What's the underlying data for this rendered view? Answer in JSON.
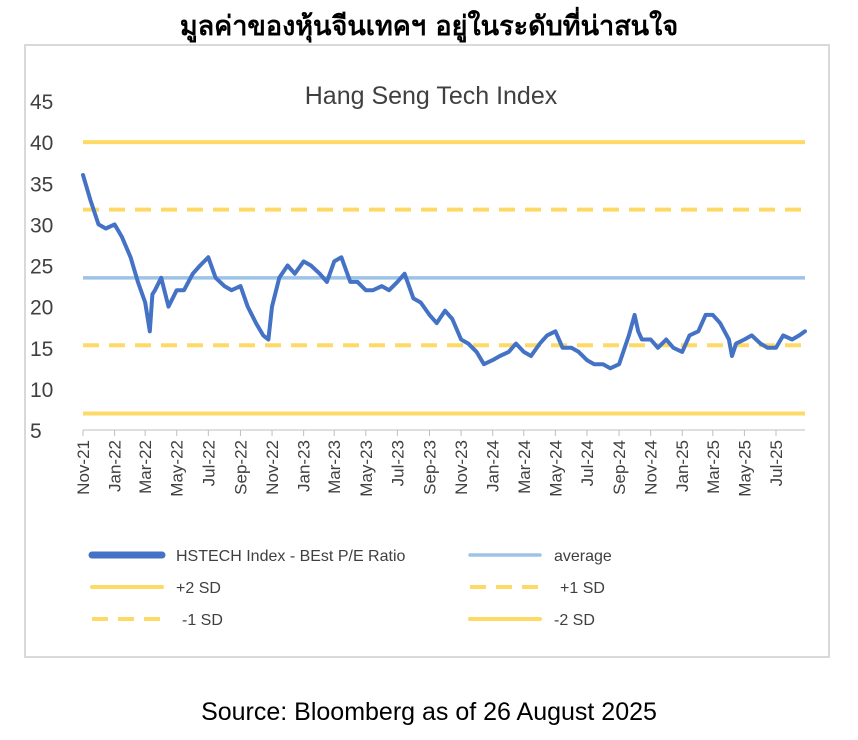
{
  "page": {
    "heading": "มูลค่าของหุ้นจีนเทคฯ อยู่ในระดับที่น่าสนใจ",
    "source": "Source: Bloomberg as of 26 August 2025"
  },
  "chart_data": {
    "type": "line",
    "title": "Hang Seng Tech Index",
    "xlabel": "",
    "ylabel": "",
    "ylim": [
      5,
      45
    ],
    "yticks": [
      45,
      40,
      35,
      30,
      25,
      20,
      15,
      10,
      5
    ],
    "xticks": [
      "Nov-21",
      "Jan-22",
      "Mar-22",
      "May-22",
      "Jul-22",
      "Sep-22",
      "Nov-22",
      "Jan-23",
      "Mar-23",
      "May-23",
      "Jul-23",
      "Sep-23",
      "Nov-23",
      "Jan-24",
      "Mar-24",
      "May-24",
      "Jul-24",
      "Sep-24",
      "Nov-24",
      "Jan-25",
      "Mar-25",
      "May-25",
      "Jul-25"
    ],
    "x_range": [
      "2021-11-01",
      "2025-08-26"
    ],
    "grid": false,
    "legend_position": "bottom",
    "colors": {
      "pe": "#4472c4",
      "average": "#9dc3e6",
      "sd": "#ffd966"
    },
    "series": [
      {
        "name": "HSTECH Index - BEst P/E Ratio",
        "x": [
          "2021-11-01",
          "2021-11-15",
          "2021-12-01",
          "2021-12-15",
          "2022-01-01",
          "2022-01-15",
          "2022-02-01",
          "2022-02-15",
          "2022-03-01",
          "2022-03-10",
          "2022-03-15",
          "2022-03-20",
          "2022-04-01",
          "2022-04-15",
          "2022-05-01",
          "2022-05-15",
          "2022-06-01",
          "2022-06-15",
          "2022-07-01",
          "2022-07-15",
          "2022-08-01",
          "2022-08-15",
          "2022-09-01",
          "2022-09-15",
          "2022-10-01",
          "2022-10-15",
          "2022-10-25",
          "2022-11-01",
          "2022-11-15",
          "2022-12-01",
          "2022-12-15",
          "2023-01-01",
          "2023-01-15",
          "2023-02-01",
          "2023-02-15",
          "2023-03-01",
          "2023-03-15",
          "2023-04-01",
          "2023-04-15",
          "2023-05-01",
          "2023-05-15",
          "2023-06-01",
          "2023-06-15",
          "2023-07-01",
          "2023-07-15",
          "2023-08-01",
          "2023-08-15",
          "2023-09-01",
          "2023-09-15",
          "2023-10-01",
          "2023-10-15",
          "2023-11-01",
          "2023-11-15",
          "2023-12-01",
          "2023-12-15",
          "2024-01-01",
          "2024-01-15",
          "2024-02-01",
          "2024-02-15",
          "2024-03-01",
          "2024-03-15",
          "2024-04-01",
          "2024-04-15",
          "2024-05-01",
          "2024-05-15",
          "2024-06-01",
          "2024-06-15",
          "2024-07-01",
          "2024-07-15",
          "2024-08-01",
          "2024-08-15",
          "2024-09-01",
          "2024-09-20",
          "2024-10-01",
          "2024-10-08",
          "2024-10-15",
          "2024-11-01",
          "2024-11-15",
          "2024-12-01",
          "2024-12-15",
          "2025-01-01",
          "2025-01-15",
          "2025-02-01",
          "2025-02-15",
          "2025-03-01",
          "2025-03-15",
          "2025-04-01",
          "2025-04-07",
          "2025-04-15",
          "2025-05-01",
          "2025-05-15",
          "2025-06-01",
          "2025-06-15",
          "2025-07-01",
          "2025-07-15",
          "2025-08-01",
          "2025-08-15",
          "2025-08-26"
        ],
        "y": [
          36,
          33,
          30,
          29.5,
          30,
          28.5,
          26,
          23,
          20.5,
          17,
          21.5,
          22,
          23.5,
          20,
          22,
          22,
          24,
          25,
          26,
          23.5,
          22.5,
          22,
          22.5,
          20,
          18,
          16.5,
          16,
          20,
          23.5,
          25,
          24,
          25.5,
          25,
          24,
          23,
          25.5,
          26,
          23,
          23,
          22,
          22,
          22.5,
          22,
          23,
          24,
          21,
          20.5,
          19,
          18,
          19.5,
          18.5,
          16,
          15.5,
          14.5,
          13,
          13.5,
          14,
          14.5,
          15.5,
          14.5,
          14,
          15.5,
          16.5,
          17,
          15,
          15,
          14.5,
          13.5,
          13,
          13,
          12.5,
          13,
          16.5,
          19,
          17,
          16,
          16,
          15,
          16,
          15,
          14.5,
          16.5,
          17,
          19,
          19,
          18,
          16,
          14,
          15.5,
          16,
          16.5,
          15.5,
          15,
          15,
          16.5,
          16,
          16.5,
          17
        ]
      },
      {
        "name": "average",
        "value": 23.5
      },
      {
        "name": "+2 SD",
        "value": 40
      },
      {
        "name": "+1 SD",
        "value": 31.8
      },
      {
        "name": "-1 SD",
        "value": 15.3
      },
      {
        "name": "-2 SD",
        "value": 7
      }
    ]
  }
}
